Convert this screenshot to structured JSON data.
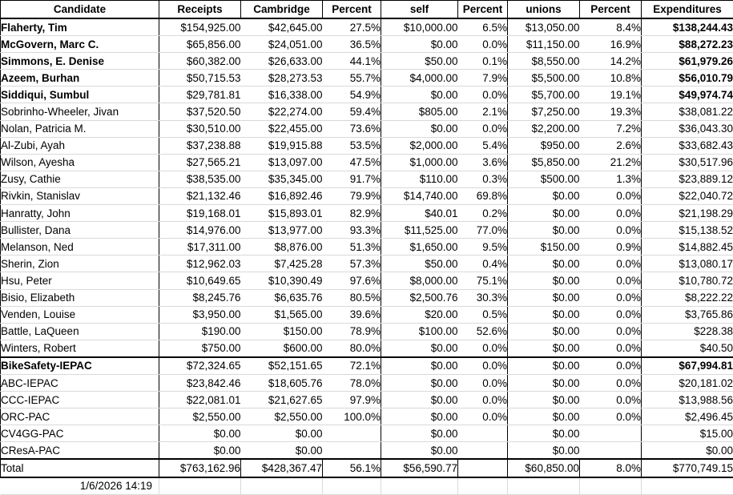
{
  "styles": {
    "highlight_red": "#ff0000",
    "grid_line": "#d9d9d9",
    "border_black": "#000000",
    "background": "#ffffff"
  },
  "columns": [
    "Candidate",
    "Receipts",
    "Cambridge",
    "Percent",
    "self",
    "Percent",
    "unions",
    "Percent",
    "Expenditures"
  ],
  "candidates": [
    {
      "red": true,
      "cells": [
        "Flaherty, Tim",
        "$154,925.00",
        "$42,645.00",
        "27.5%",
        "$10,000.00",
        "6.5%",
        "$13,050.00",
        "8.4%",
        "$138,244.43"
      ]
    },
    {
      "red": true,
      "cells": [
        "McGovern, Marc C.",
        "$65,856.00",
        "$24,051.00",
        "36.5%",
        "$0.00",
        "0.0%",
        "$11,150.00",
        "16.9%",
        "$88,272.23"
      ]
    },
    {
      "red": true,
      "cells": [
        "Simmons, E. Denise",
        "$60,382.00",
        "$26,633.00",
        "44.1%",
        "$50.00",
        "0.1%",
        "$8,550.00",
        "14.2%",
        "$61,979.26"
      ]
    },
    {
      "red": true,
      "cells": [
        "Azeem, Burhan",
        "$50,715.53",
        "$28,273.53",
        "55.7%",
        "$4,000.00",
        "7.9%",
        "$5,500.00",
        "10.8%",
        "$56,010.79"
      ]
    },
    {
      "red": true,
      "cells": [
        "Siddiqui, Sumbul",
        "$29,781.81",
        "$16,338.00",
        "54.9%",
        "$0.00",
        "0.0%",
        "$5,700.00",
        "19.1%",
        "$49,974.74"
      ]
    },
    {
      "red": false,
      "cells": [
        "Sobrinho-Wheeler, Jivan",
        "$37,520.50",
        "$22,274.00",
        "59.4%",
        "$805.00",
        "2.1%",
        "$7,250.00",
        "19.3%",
        "$38,081.22"
      ]
    },
    {
      "red": false,
      "cells": [
        "Nolan, Patricia M.",
        "$30,510.00",
        "$22,455.00",
        "73.6%",
        "$0.00",
        "0.0%",
        "$2,200.00",
        "7.2%",
        "$36,043.30"
      ]
    },
    {
      "red": false,
      "cells": [
        "Al-Zubi, Ayah",
        "$37,238.88",
        "$19,915.88",
        "53.5%",
        "$2,000.00",
        "5.4%",
        "$950.00",
        "2.6%",
        "$33,682.43"
      ]
    },
    {
      "red": false,
      "cells": [
        "Wilson, Ayesha",
        "$27,565.21",
        "$13,097.00",
        "47.5%",
        "$1,000.00",
        "3.6%",
        "$5,850.00",
        "21.2%",
        "$30,517.96"
      ]
    },
    {
      "red": false,
      "cells": [
        "Zusy, Cathie",
        "$38,535.00",
        "$35,345.00",
        "91.7%",
        "$110.00",
        "0.3%",
        "$500.00",
        "1.3%",
        "$23,889.12"
      ]
    },
    {
      "red": false,
      "cells": [
        "Rivkin, Stanislav",
        "$21,132.46",
        "$16,892.46",
        "79.9%",
        "$14,740.00",
        "69.8%",
        "$0.00",
        "0.0%",
        "$22,040.72"
      ]
    },
    {
      "red": false,
      "cells": [
        "Hanratty, John",
        "$19,168.01",
        "$15,893.01",
        "82.9%",
        "$40.01",
        "0.2%",
        "$0.00",
        "0.0%",
        "$21,198.29"
      ]
    },
    {
      "red": false,
      "cells": [
        "Bullister, Dana",
        "$14,976.00",
        "$13,977.00",
        "93.3%",
        "$11,525.00",
        "77.0%",
        "$0.00",
        "0.0%",
        "$15,138.52"
      ]
    },
    {
      "red": false,
      "cells": [
        "Melanson, Ned",
        "$17,311.00",
        "$8,876.00",
        "51.3%",
        "$1,650.00",
        "9.5%",
        "$150.00",
        "0.9%",
        "$14,882.45"
      ]
    },
    {
      "red": false,
      "cells": [
        "Sherin, Zion",
        "$12,962.03",
        "$7,425.28",
        "57.3%",
        "$50.00",
        "0.4%",
        "$0.00",
        "0.0%",
        "$13,080.17"
      ]
    },
    {
      "red": false,
      "cells": [
        "Hsu, Peter",
        "$10,649.65",
        "$10,390.49",
        "97.6%",
        "$8,000.00",
        "75.1%",
        "$0.00",
        "0.0%",
        "$10,780.72"
      ]
    },
    {
      "red": false,
      "cells": [
        "Bisio, Elizabeth",
        "$8,245.76",
        "$6,635.76",
        "80.5%",
        "$2,500.76",
        "30.3%",
        "$0.00",
        "0.0%",
        "$8,222.22"
      ]
    },
    {
      "red": false,
      "cells": [
        "Venden, Louise",
        "$3,950.00",
        "$1,565.00",
        "39.6%",
        "$20.00",
        "0.5%",
        "$0.00",
        "0.0%",
        "$3,765.86"
      ]
    },
    {
      "red": false,
      "cells": [
        "Battle, LaQueen",
        "$190.00",
        "$150.00",
        "78.9%",
        "$100.00",
        "52.6%",
        "$0.00",
        "0.0%",
        "$228.38"
      ]
    },
    {
      "red": false,
      "cells": [
        "Winters, Robert",
        "$750.00",
        "$600.00",
        "80.0%",
        "$0.00",
        "0.0%",
        "$0.00",
        "0.0%",
        "$40.50"
      ]
    }
  ],
  "pacs": [
    {
      "red": true,
      "cells": [
        "BikeSafety-IEPAC",
        "$72,324.65",
        "$52,151.65",
        "72.1%",
        "$0.00",
        "0.0%",
        "$0.00",
        "0.0%",
        "$67,994.81"
      ]
    },
    {
      "red": false,
      "cells": [
        "ABC-IEPAC",
        "$23,842.46",
        "$18,605.76",
        "78.0%",
        "$0.00",
        "0.0%",
        "$0.00",
        "0.0%",
        "$20,181.02"
      ]
    },
    {
      "red": false,
      "cells": [
        "CCC-IEPAC",
        "$22,081.01",
        "$21,627.65",
        "97.9%",
        "$0.00",
        "0.0%",
        "$0.00",
        "0.0%",
        "$13,988.56"
      ]
    },
    {
      "red": false,
      "cells": [
        "ORC-PAC",
        "$2,550.00",
        "$2,550.00",
        "100.0%",
        "$0.00",
        "0.0%",
        "$0.00",
        "0.0%",
        "$2,496.45"
      ]
    },
    {
      "red": false,
      "cells": [
        "CV4GG-PAC",
        "$0.00",
        "$0.00",
        "",
        "$0.00",
        "",
        "$0.00",
        "",
        "$15.00"
      ]
    },
    {
      "red": false,
      "cells": [
        "CResA-PAC",
        "$0.00",
        "$0.00",
        "",
        "$0.00",
        "",
        "$0.00",
        "",
        "$0.00"
      ]
    }
  ],
  "total": {
    "cells": [
      "Total",
      "$763,162.96",
      "$428,367.47",
      "56.1%",
      "$56,590.77",
      "",
      "$60,850.00",
      "8.0%",
      "$770,749.15"
    ]
  },
  "footer": {
    "timestamp": "1/6/2026 14:19"
  }
}
